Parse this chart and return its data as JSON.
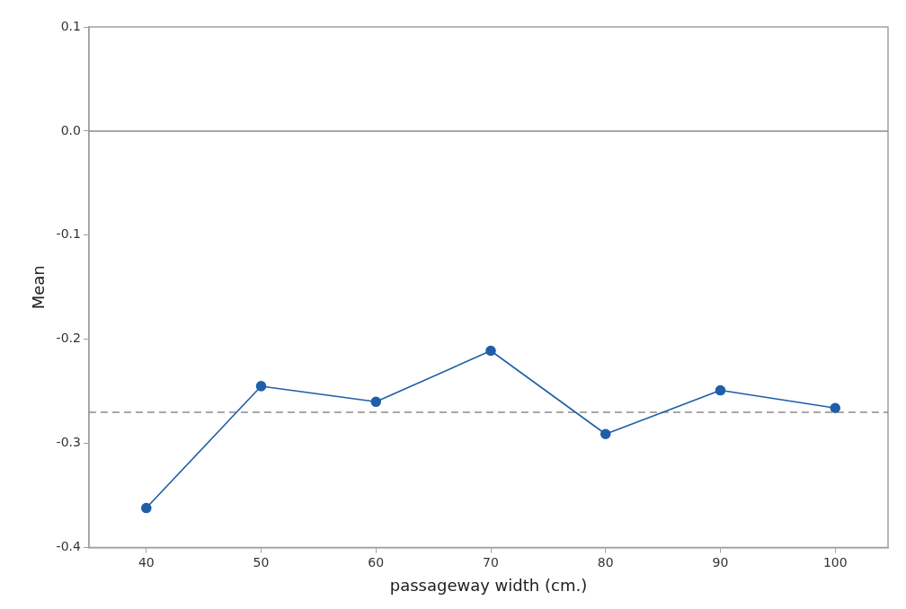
{
  "chart_data": {
    "type": "line",
    "xlabel": "passageway width (cm.)",
    "ylabel": "Mean",
    "x": [
      40,
      50,
      60,
      70,
      80,
      90,
      100
    ],
    "series": [
      {
        "color": "#1f5fa8",
        "values": [
          -0.362,
          -0.245,
          -0.26,
          -0.211,
          -0.291,
          -0.249,
          -0.266
        ]
      }
    ],
    "xlim": [
      35,
      104.6
    ],
    "xticks": [
      40,
      50,
      60,
      70,
      80,
      90,
      100
    ],
    "ylim": [
      -0.4,
      0.1
    ],
    "yticks": [
      {
        "value": -0.4,
        "label": "-0.4"
      },
      {
        "value": -0.3,
        "label": "-0.3"
      },
      {
        "value": -0.2,
        "label": "-0.2"
      },
      {
        "value": -0.1,
        "label": "-0.1"
      },
      {
        "value": 0,
        "label": "0.0"
      },
      {
        "value": 0.1,
        "label": "0.1"
      }
    ],
    "ref_lines": [
      {
        "axis": "y",
        "value": 0,
        "color": "#8c8c8c",
        "line_style": "solid"
      },
      {
        "axis": "y",
        "value": -0.27,
        "color": "#8c8c8c",
        "line_style": "dashed"
      }
    ],
    "grid": false,
    "legend": false,
    "marker": "circle",
    "line_style": "solid"
  }
}
